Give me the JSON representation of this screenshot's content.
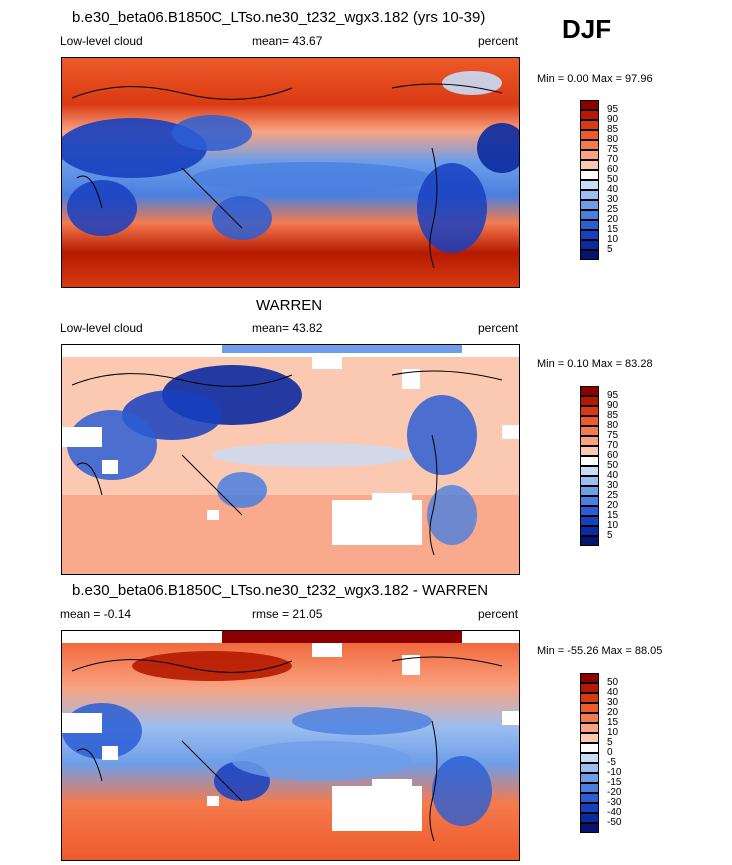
{
  "season": "DJF",
  "panels": [
    {
      "title": "b.e30_beta06.B1850C_LTso.ne30_t232_wgx3.182 (yrs 10-39)",
      "left_label": "Low-level cloud",
      "center_label": "mean=  43.67",
      "right_label": "percent",
      "minmax": "Min =   0.00 Max =  97.96",
      "colorbar_labels": [
        "95",
        "90",
        "85",
        "80",
        "75",
        "70",
        "60",
        "50",
        "40",
        "30",
        "25",
        "20",
        "15",
        "10",
        "5"
      ]
    },
    {
      "title": "WARREN",
      "left_label": "Low-level cloud",
      "center_label": "mean=  43.82",
      "right_label": "percent",
      "minmax": "Min =   0.10 Max =  83.28",
      "colorbar_labels": [
        "95",
        "90",
        "85",
        "80",
        "75",
        "70",
        "60",
        "50",
        "40",
        "30",
        "25",
        "20",
        "15",
        "10",
        "5"
      ]
    },
    {
      "title": "b.e30_beta06.B1850C_LTso.ne30_t232_wgx3.182 - WARREN",
      "left_label": "mean =  -0.14",
      "center_label": "rmse =  21.05",
      "right_label": "percent",
      "minmax": "Min = -55.26 Max =  88.05",
      "colorbar_labels": [
        "50",
        "40",
        "30",
        "20",
        "15",
        "10",
        "5",
        "0",
        "-5",
        "-10",
        "-15",
        "-20",
        "-30",
        "-40",
        "-50"
      ]
    }
  ],
  "colors": {
    "scale": [
      "#8b0000",
      "#b51a00",
      "#d93a12",
      "#ee5a2a",
      "#f47b4f",
      "#f9a382",
      "#fbc9b2",
      "#ffffff",
      "#c9dcf6",
      "#9bbdf0",
      "#6e9ee8",
      "#4a7fe0",
      "#2b5ed3",
      "#1740bf",
      "#0a2aa0",
      "#04156f"
    ]
  }
}
